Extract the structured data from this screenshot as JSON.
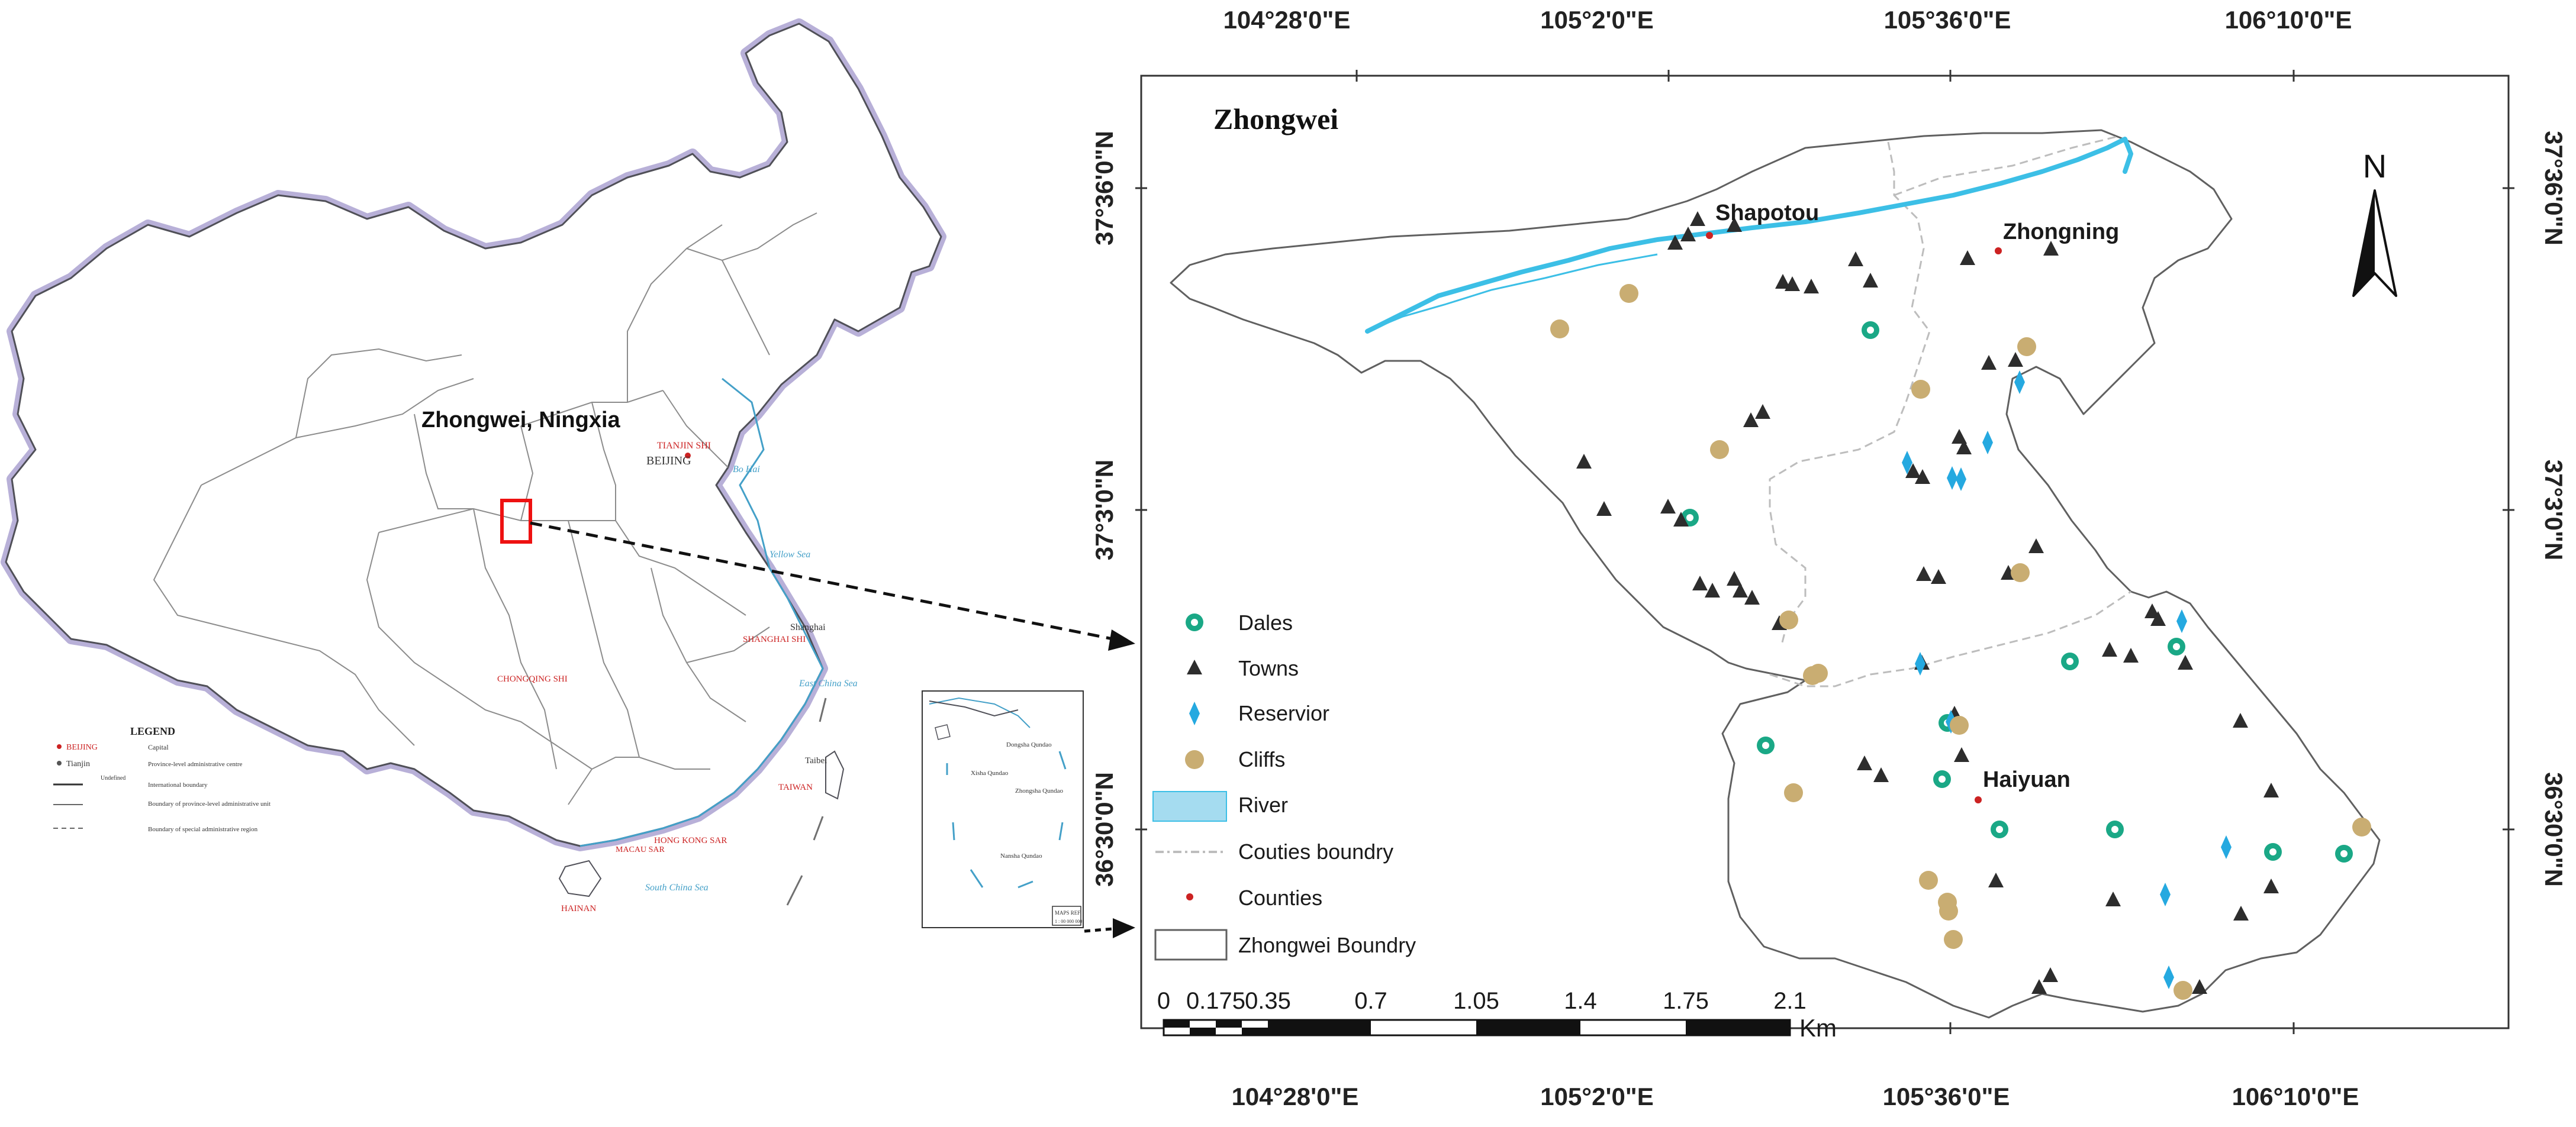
{
  "overview_map": {
    "region_label": "Zhongwei, Ningxia",
    "capital_label": "BEIJING",
    "legend": {
      "title": "LEGEND",
      "capital": "BEIJING",
      "capital_desc": "Capital",
      "provincial": "Tianjin",
      "provincial_desc": "Province-level administrative centre",
      "boundary_international": "International boundary",
      "boundary_undefined": "Undefined",
      "boundary_provincial": "Boundary of province-level administrative unit",
      "boundary_provincial_desc": "Boundary of special administrative region"
    },
    "place_labels": {
      "beijing": "BEIJING",
      "tianjin": "TIANJIN SHI",
      "shanghai": "Shanghai",
      "shanghai_shi": "SHANGHAI SHI",
      "chongqing": "CHONGQING SHI",
      "hongkong": "HONG KONG SAR",
      "macau": "MACAU SAR",
      "hainan": "HAINAN",
      "taiwan": "TAIWAN",
      "taibei": "Taibei",
      "bohai": "Bo Hai",
      "yellow_sea": "Yellow Sea",
      "east_china_sea": "East China Sea",
      "south_china_sea": "South China Sea"
    },
    "inset_labels": {
      "dongsha": "Dongsha Qundao",
      "xisha": "Xisha Qundao",
      "zhongsha": "Zhongsha Qundao",
      "nansha": "Nansha Qundao",
      "scale_label": "1 : 00 000 000",
      "ref": "MAPS REF"
    },
    "colors": {
      "border_glow": "#b8b0d8",
      "border": "#505058",
      "box": "#ee1111",
      "sea_text": "#44a0c8"
    }
  },
  "study_map": {
    "title": "Zhongwei",
    "north_label": "N",
    "top_lon_labels": [
      "104°28'0\"E",
      "105°2'0\"E",
      "105°36'0\"E",
      "106°10'0\"E"
    ],
    "bottom_lon_labels": [
      "104°28'0\"E",
      "105°2'0\"E",
      "105°36'0\"E",
      "106°10'0\"E"
    ],
    "left_lat_labels": [
      "37°36'0\"N",
      "37°3'0\"N",
      "36°30'0\"N"
    ],
    "right_lat_labels": [
      "37°36'0\"N",
      "37°3'0\"N",
      "36°30'0\"N"
    ],
    "county_labels": [
      "Shapotou",
      "Zhongning",
      "Haiyuan"
    ],
    "legend": [
      {
        "key": "dales",
        "label": "Dales"
      },
      {
        "key": "towns",
        "label": "Towns"
      },
      {
        "key": "reservoir",
        "label": "Reservior"
      },
      {
        "key": "cliffs",
        "label": "Cliffs"
      },
      {
        "key": "river",
        "label": "River"
      },
      {
        "key": "counties_boundary",
        "label": "Couties boundry"
      },
      {
        "key": "counties",
        "label": "Counties"
      },
      {
        "key": "zhongwei_boundary",
        "label": "Zhongwei Boundry"
      }
    ],
    "scale_bar": {
      "ticks": [
        "0",
        "0.175",
        "0.35",
        "0.7",
        "1.05",
        "1.4",
        "1.75",
        "2.1"
      ],
      "unit": "Km"
    },
    "colors": {
      "dales": "#1aa886",
      "towns": "#2d2d2d",
      "reservoir": "#25a9e0",
      "cliffs": "#c9ad72",
      "river": "#3cbfe6",
      "river_fill": "#a5dcf0",
      "counties": "#cc2222",
      "boundary": "#606060",
      "county_boundary": "#bdbdbd"
    }
  }
}
